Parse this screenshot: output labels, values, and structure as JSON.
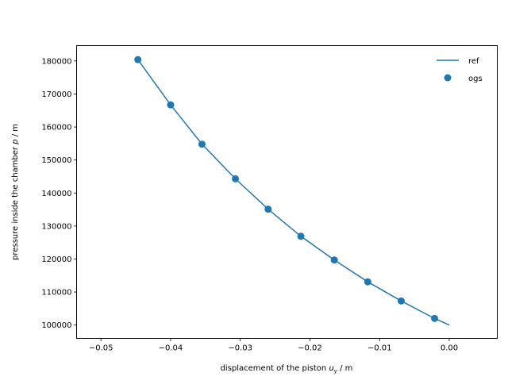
{
  "chart_data": {
    "type": "line",
    "xlabel": "displacement of the piston",
    "xlabel_symbol": "u",
    "xlabel_subscript": "y",
    "xlabel_unit": " / m",
    "ylabel": "pressure inside the chamber",
    "ylabel_symbol": "p",
    "ylabel_unit": " / m",
    "xlim": [
      -0.0535,
      0.0069
    ],
    "ylim": [
      95960,
      184650
    ],
    "xticks": [
      -0.05,
      -0.04,
      -0.03,
      -0.02,
      -0.01,
      0.0
    ],
    "xtick_labels": [
      "−0.05",
      "−0.04",
      "−0.03",
      "−0.02",
      "−0.01",
      "0.00"
    ],
    "yticks": [
      100000,
      110000,
      120000,
      130000,
      140000,
      150000,
      160000,
      170000,
      180000
    ],
    "ytick_labels": [
      "100000",
      "110000",
      "120000",
      "130000",
      "140000",
      "150000",
      "160000",
      "170000",
      "180000"
    ],
    "legend": {
      "position": "upper right",
      "entries": [
        "ref",
        "ogs"
      ]
    },
    "grid": false,
    "color": "#1f77b4",
    "series": [
      {
        "name": "ref",
        "kind": "line",
        "x": [
          -0.0447,
          -0.04,
          -0.0355,
          -0.0307,
          -0.026,
          -0.0213,
          -0.0165,
          -0.0117,
          -0.0069,
          -0.0021,
          0.0
        ],
        "y": [
          180400,
          166700,
          154800,
          144300,
          135100,
          126900,
          119700,
          113100,
          107300,
          102000,
          100000
        ]
      },
      {
        "name": "ogs",
        "kind": "scatter",
        "x": [
          -0.0447,
          -0.04,
          -0.0355,
          -0.0307,
          -0.026,
          -0.0213,
          -0.0165,
          -0.0117,
          -0.0069,
          -0.0021
        ],
        "y": [
          180400,
          166700,
          154800,
          144300,
          135100,
          126900,
          119700,
          113100,
          107300,
          102000
        ]
      }
    ]
  }
}
